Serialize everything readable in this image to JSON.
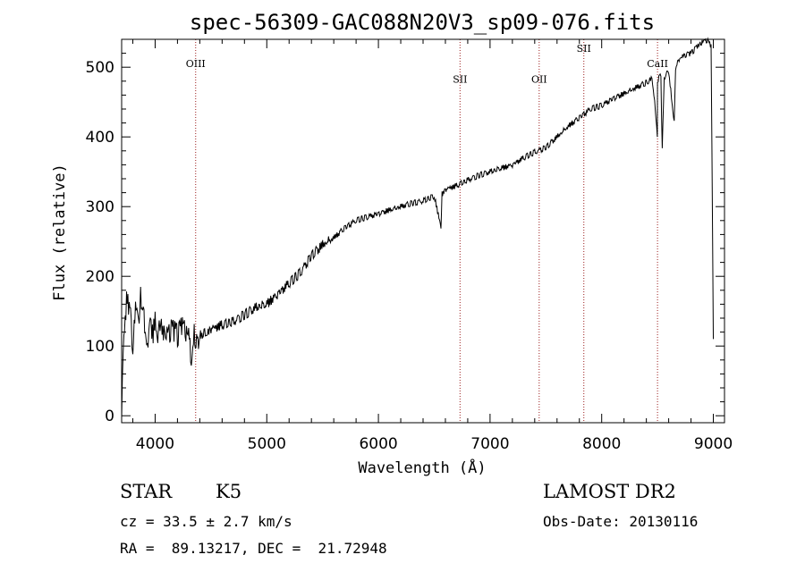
{
  "chart_data": {
    "type": "line",
    "title": "spec-56309-GAC088N20V3_sp09-076.fits",
    "xlabel": "Wavelength (Å)",
    "ylabel": "Flux (relative)",
    "xlim": [
      3700,
      9100
    ],
    "ylim": [
      -10,
      540
    ],
    "xticks": [
      4000,
      5000,
      6000,
      7000,
      8000,
      9000
    ],
    "yticks": [
      0,
      100,
      200,
      300,
      400,
      500
    ],
    "grid": false,
    "series": [
      {
        "x": [
          3700,
          3720,
          3750,
          3780,
          3800,
          3830,
          3850,
          3870,
          3900,
          3930,
          3950,
          3970,
          4000,
          4030,
          4050,
          4080,
          4100,
          4150,
          4200,
          4250,
          4300,
          4330,
          4350,
          4360,
          4400,
          4450,
          4500,
          4600,
          4700,
          4800,
          4900,
          5000,
          5100,
          5200,
          5300,
          5400,
          5500,
          5600,
          5700,
          5800,
          5900,
          6000,
          6100,
          6200,
          6300,
          6400,
          6500,
          6560,
          6570,
          6580,
          6600,
          6700,
          6800,
          6900,
          7000,
          7100,
          7200,
          7300,
          7400,
          7500,
          7600,
          7700,
          7800,
          7900,
          8000,
          8100,
          8200,
          8300,
          8400,
          8450,
          8480,
          8498,
          8500,
          8530,
          8542,
          8560,
          8600,
          8650,
          8662,
          8680,
          8700,
          8750,
          8800,
          8850,
          8900,
          8950,
          8980,
          9000
        ],
        "values": [
          0,
          120,
          175,
          140,
          100,
          160,
          130,
          170,
          145,
          95,
          150,
          110,
          135,
          115,
          140,
          120,
          110,
          125,
          115,
          130,
          110,
          75,
          125,
          100,
          115,
          120,
          125,
          130,
          135,
          145,
          155,
          160,
          175,
          190,
          205,
          230,
          245,
          255,
          270,
          280,
          285,
          290,
          295,
          300,
          305,
          308,
          315,
          270,
          318,
          320,
          325,
          330,
          338,
          345,
          350,
          355,
          360,
          370,
          378,
          385,
          400,
          415,
          428,
          440,
          445,
          455,
          462,
          470,
          478,
          485,
          440,
          400,
          480,
          490,
          380,
          485,
          495,
          420,
          500,
          510,
          512,
          518,
          520,
          528,
          535,
          538,
          530,
          110
        ]
      }
    ],
    "annotations": [
      {
        "x": 4363,
        "label": "OIII",
        "label_y": 500
      },
      {
        "x": 6731,
        "label": "SII",
        "label_y": 478
      },
      {
        "x": 7440,
        "label": "OII",
        "label_y": 478
      },
      {
        "x": 7840,
        "label": "SII",
        "label_y": 522
      },
      {
        "x": 8500,
        "label": "CaII",
        "label_y": 500
      }
    ]
  },
  "info": {
    "class": "STAR",
    "subclass": "K5",
    "survey": "LAMOST DR2",
    "cz": "cz = 33.5 ± 2.7 km/s",
    "obs_date": "Obs-Date: 20130116",
    "coords": "RA =  89.13217, DEC =  21.72948"
  }
}
